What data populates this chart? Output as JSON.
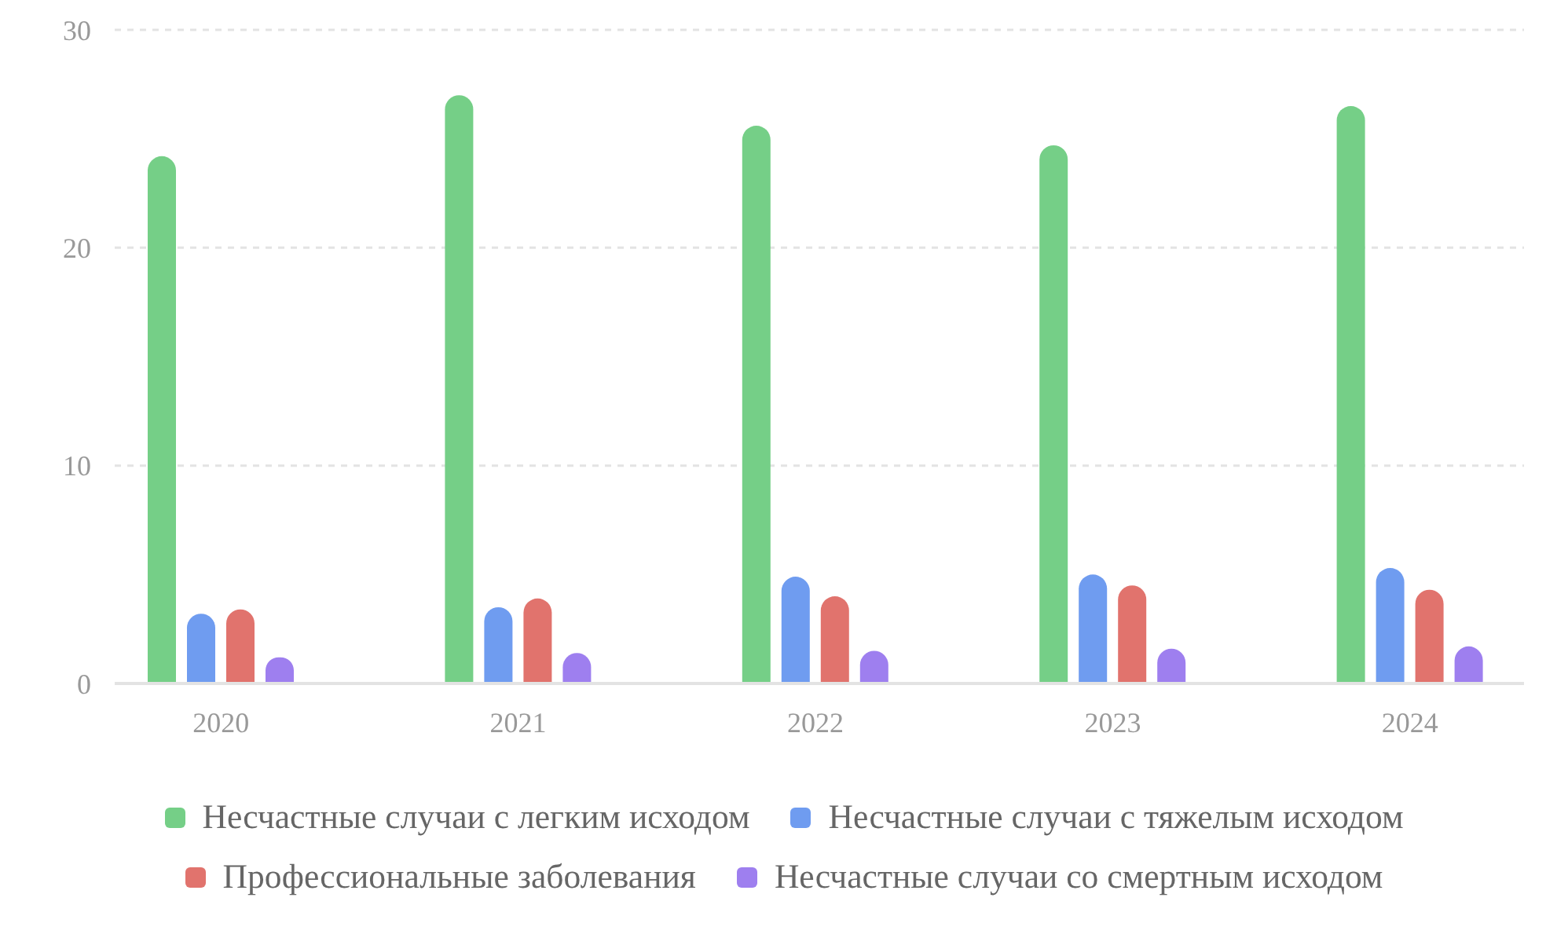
{
  "chart_data": {
    "type": "bar",
    "categories": [
      "2020",
      "2021",
      "2022",
      "2023",
      "2024"
    ],
    "series": [
      {
        "name": "Несчастные случаи с легким исходом",
        "color": "#75cf87",
        "values": [
          24.2,
          27.0,
          25.6,
          24.7,
          26.5
        ]
      },
      {
        "name": "Несчастные случаи с тяжелым исходом",
        "color": "#6f9cf0",
        "values": [
          3.2,
          3.5,
          4.9,
          5.0,
          5.3
        ]
      },
      {
        "name": "Профессиональные заболевания",
        "color": "#e1736d",
        "values": [
          3.4,
          3.9,
          4.0,
          4.5,
          4.3
        ]
      },
      {
        "name": "Несчастные случаи со смертным исходом",
        "color": "#9e7fef",
        "values": [
          1.2,
          1.4,
          1.5,
          1.6,
          1.7
        ]
      }
    ],
    "ylim": [
      0,
      30
    ],
    "yticks": [
      0,
      10,
      20,
      30
    ],
    "grid": "y",
    "legend": "bottom"
  }
}
